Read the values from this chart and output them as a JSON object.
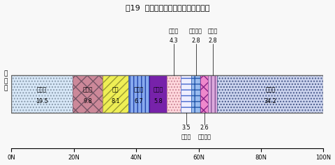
{
  "title": "図19  小売業販売額の市町村別構成比",
  "ylabel": "販\n売\n額",
  "segments": [
    {
      "label": "千葉市",
      "value": 19.5,
      "fc": "#d8e8f8",
      "ec": "#8899aa",
      "hatch": "...."
    },
    {
      "label": "船橋市",
      "value": 9.8,
      "fc": "#cc8899",
      "ec": "#775566",
      "hatch": "xx"
    },
    {
      "label": "柏市",
      "value": 8.1,
      "fc": "#eeee55",
      "ec": "#999933",
      "hatch": "///"
    },
    {
      "label": "松戸市",
      "value": 6.7,
      "fc": "#88aaee",
      "ec": "#2244aa",
      "hatch": "|||"
    },
    {
      "label": "市川市",
      "value": 5.8,
      "fc": "#7722aa",
      "ec": "#330088",
      "hatch": ""
    },
    {
      "label": "市原市",
      "value": 4.3,
      "fc": "#ffd8dd",
      "ec": "#cc8899",
      "hatch": "...."
    },
    {
      "label": "成田市",
      "value": 3.5,
      "fc": "#eeeeff",
      "ec": "#4466cc",
      "hatch": "--"
    },
    {
      "label": "八千代市",
      "value": 2.8,
      "fc": "#99bbee",
      "ec": "#2255aa",
      "hatch": "++"
    },
    {
      "label": "習志野市",
      "value": 2.6,
      "fc": "#ee88cc",
      "ec": "#882288",
      "hatch": "xx"
    },
    {
      "label": "浦安市",
      "value": 2.8,
      "fc": "#ddaadd",
      "ec": "#885599",
      "hatch": "|||"
    },
    {
      "label": "その他",
      "value": 34.2,
      "fc": "#ccd4ee",
      "ec": "#445588",
      "hatch": "...."
    }
  ],
  "xticks": [
    0,
    20,
    40,
    60,
    80,
    100
  ],
  "bg_color": "#f8f8f8",
  "inline_idx": [
    0,
    1,
    2,
    3,
    4,
    10
  ],
  "above_idx": [
    5,
    7,
    9
  ],
  "below_idx": [
    6,
    8
  ]
}
